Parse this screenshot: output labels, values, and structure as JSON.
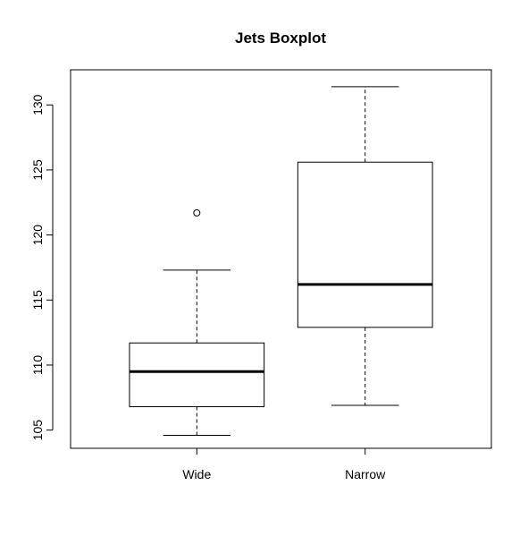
{
  "chart_data": {
    "type": "boxplot",
    "title": "Jets Boxplot",
    "xlabel": "",
    "ylabel": "",
    "categories": [
      "Wide",
      "Narrow"
    ],
    "ylim": [
      103.6,
      132.7
    ],
    "yticks": [
      105,
      110,
      115,
      120,
      125,
      130
    ],
    "ytick_labels": [
      "105",
      "110",
      "115",
      "120",
      "125",
      "130"
    ],
    "grid": false,
    "boxes": [
      {
        "category": "Wide",
        "whisker_low": 104.6,
        "q1": 106.8,
        "median": 109.5,
        "q3": 111.7,
        "whisker_high": 117.3,
        "outliers": [
          121.7
        ]
      },
      {
        "category": "Narrow",
        "whisker_low": 106.9,
        "q1": 112.9,
        "median": 116.2,
        "q3": 125.6,
        "whisker_high": 131.4,
        "outliers": []
      }
    ]
  }
}
